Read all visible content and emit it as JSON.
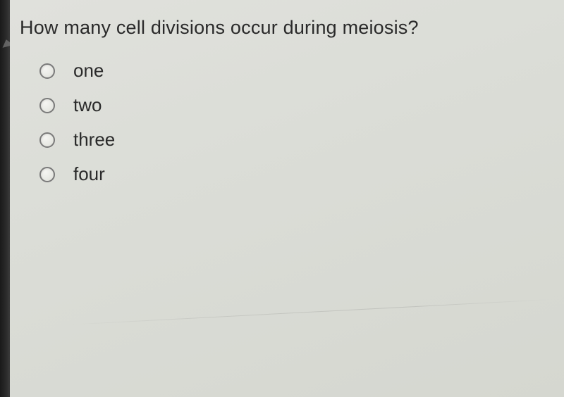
{
  "question": {
    "prompt": "How many cell divisions occur during meiosis?",
    "options": [
      {
        "label": "one"
      },
      {
        "label": "two"
      },
      {
        "label": "three"
      },
      {
        "label": "four"
      }
    ]
  },
  "colors": {
    "background": "#d8dad5",
    "text": "#2a2a2a",
    "radio_border": "#7a7a7a",
    "bezel": "#1a1a1a"
  }
}
